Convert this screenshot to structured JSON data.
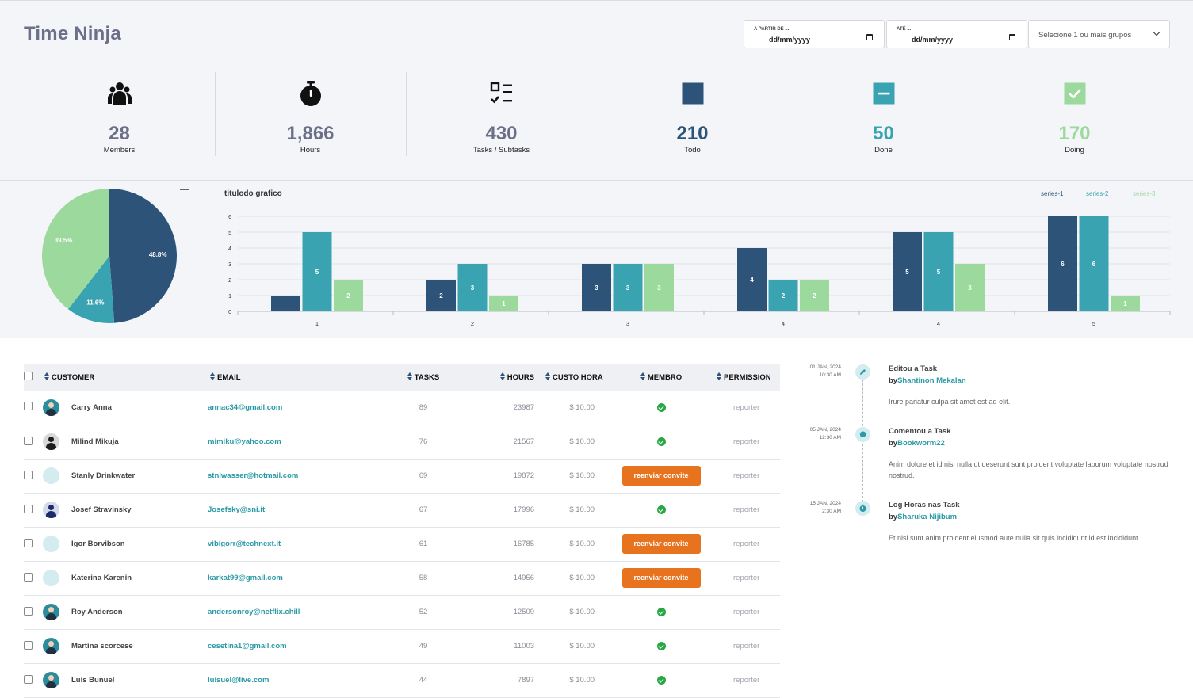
{
  "header": {
    "app_title": "Time Ninja",
    "date_from_label": "A PARTIR DE ...",
    "date_from_value": "dd/mm/yyyy",
    "date_to_label": "ATÉ ...",
    "date_to_value": "dd/mm/yyyy",
    "group_select_placeholder": "Selecione 1 ou mais grupos"
  },
  "stats": [
    {
      "value": "28",
      "label": "Members",
      "icon": "users-icon",
      "color": "#6b7088"
    },
    {
      "value": "1,866",
      "label": "Hours",
      "icon": "stopwatch-icon",
      "color": "#6b7088"
    },
    {
      "value": "430",
      "label": "Tasks / Subtasks",
      "icon": "checklist-icon",
      "color": "#6b7088"
    },
    {
      "value": "210",
      "label": "Todo",
      "icon": "square-filled-icon",
      "color": "#2d5478"
    },
    {
      "value": "50",
      "label": "Done",
      "icon": "minus-square-icon",
      "color": "#3aa3b1"
    },
    {
      "value": "170",
      "label": "Doing",
      "icon": "check-square-icon",
      "color": "#9cd99c"
    }
  ],
  "colors": {
    "series1": "#2d5478",
    "series2": "#3aa3b1",
    "series3": "#9cd99c",
    "accent": "#2a9aa6",
    "orange": "#e8731f"
  },
  "chart_data": [
    {
      "type": "pie",
      "slices": [
        {
          "label": "48.8%",
          "value": 48.8,
          "color": "#2d5478"
        },
        {
          "label": "11.6%",
          "value": 11.6,
          "color": "#3aa3b1"
        },
        {
          "label": "39.5%",
          "value": 39.5,
          "color": "#9cd99c"
        }
      ]
    },
    {
      "type": "bar",
      "title": "titulodo grafico",
      "categories": [
        "1",
        "2",
        "3",
        "4",
        "4",
        "5"
      ],
      "series": [
        {
          "name": "series-1",
          "values": [
            1,
            2,
            3,
            4,
            5,
            6
          ],
          "color": "#2d5478"
        },
        {
          "name": "series-2",
          "values": [
            5,
            3,
            3,
            2,
            5,
            6
          ],
          "color": "#3aa3b1"
        },
        {
          "name": "series-3",
          "values": [
            2,
            1,
            3,
            2,
            3,
            1
          ],
          "color": "#9cd99c"
        }
      ],
      "y_ticks": [
        "0",
        "1",
        "2",
        "3",
        "4",
        "5",
        "6"
      ],
      "ylim": [
        0,
        6
      ],
      "grid": true,
      "legend": "top-right"
    }
  ],
  "table": {
    "headers": [
      "CUSTOMER",
      "EMAIL",
      "TASKS",
      "HOURS",
      "CUSTO HORA",
      "MEMBRO",
      "PERMISSION"
    ],
    "rows": [
      {
        "avatar": "teal",
        "customer": "Carry Anna",
        "email": "annac34@gmail.com",
        "tasks": "89",
        "hours": "23987",
        "cost": "$ 10.00",
        "member": "check",
        "permission": "reporter"
      },
      {
        "avatar": "dark",
        "customer": "Milind Mikuja",
        "email": "mimiku@yahoo.com",
        "tasks": "76",
        "hours": "21567",
        "cost": "$ 10.00",
        "member": "check",
        "permission": "reporter"
      },
      {
        "avatar": "empty",
        "customer": "Stanly Drinkwater",
        "email": "stnlwasser@hotmail.com",
        "tasks": "69",
        "hours": "19872",
        "cost": "$ 10.00",
        "member": "reenviar convite",
        "permission": "reporter"
      },
      {
        "avatar": "navy",
        "customer": "Josef Stravinsky",
        "email": "Josefsky@sni.it",
        "tasks": "67",
        "hours": "17996",
        "cost": "$ 10.00",
        "member": "check",
        "permission": "reporter"
      },
      {
        "avatar": "empty",
        "customer": "Igor Borvibson",
        "email": "vibigorr@technext.it",
        "tasks": "61",
        "hours": "16785",
        "cost": "$ 10.00",
        "member": "reenviar convite",
        "permission": "reporter"
      },
      {
        "avatar": "empty",
        "customer": "Katerina Karenin",
        "email": "karkat99@gmail.com",
        "tasks": "58",
        "hours": "14956",
        "cost": "$ 10.00",
        "member": "reenviar convite",
        "permission": "reporter"
      },
      {
        "avatar": "teal",
        "customer": "Roy Anderson",
        "email": "andersonroy@netflix.chill",
        "tasks": "52",
        "hours": "12509",
        "cost": "$ 10.00",
        "member": "check",
        "permission": "reporter"
      },
      {
        "avatar": "teal",
        "customer": "Martina scorcese",
        "email": "cesetina1@gmail.com",
        "tasks": "49",
        "hours": "11003",
        "cost": "$ 10.00",
        "member": "check",
        "permission": "reporter"
      },
      {
        "avatar": "teal",
        "customer": "Luis Bunuel",
        "email": "luisuel@live.com",
        "tasks": "44",
        "hours": "7897",
        "cost": "$ 10.00",
        "member": "check",
        "permission": "reporter"
      }
    ]
  },
  "timeline": [
    {
      "date": "01 JAN, 2024",
      "time": "10:30 AM",
      "icon": "pencil-icon",
      "title": "Editou a Task",
      "by": "by",
      "user": "Shantinon Mekalan",
      "text": "Irure pariatur culpa sit amet est ad elit."
    },
    {
      "date": "05 JAN, 2024",
      "time": "12:30 AM",
      "icon": "comment-icon",
      "title": "Comentou a Task",
      "by": "by",
      "user": "Bookworm22",
      "text": "Anim dolore et id nisi nulla ut deserunt sunt proident voluptate laborum voluptate nostrud nostrud."
    },
    {
      "date": "15 JAN, 2024",
      "time": "2:30 AM",
      "icon": "clock-icon",
      "title": "Log Horas nas Task",
      "by": "by",
      "user": "Sharuka Nijibum",
      "text": "Et nisi sunt anim proident eiusmod aute nulla sit quis incididunt id est incididunt."
    }
  ]
}
